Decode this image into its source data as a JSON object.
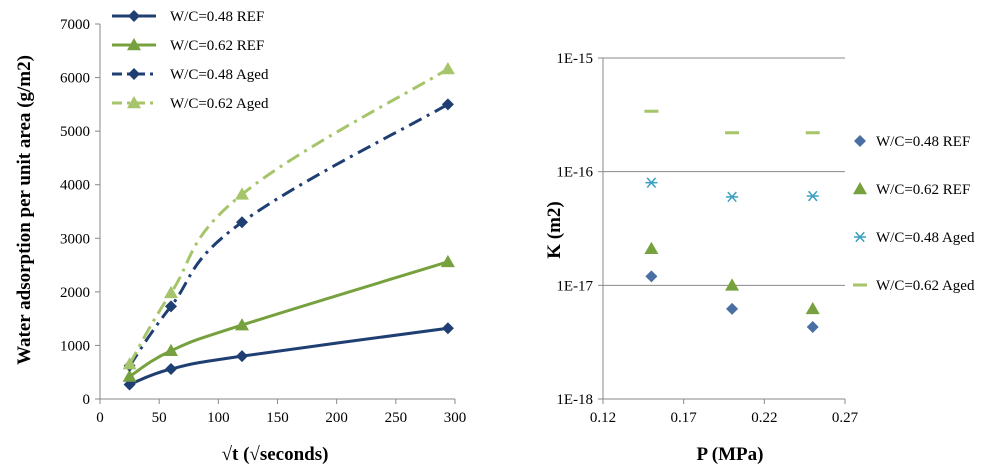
{
  "chart_data": [
    {
      "type": "line",
      "title": "",
      "xlabel": "√t (√seconds)",
      "ylabel": "Water adsorption per unit area (g/m2)",
      "xlim": [
        0,
        300
      ],
      "ylim": [
        0,
        7000
      ],
      "xticks": [
        "0",
        "50",
        "100",
        "150",
        "200",
        "250",
        "300"
      ],
      "yticks": [
        "0",
        "1000",
        "2000",
        "3000",
        "4000",
        "5000",
        "6000",
        "7000"
      ],
      "grid": false,
      "legend": "top-left",
      "series": [
        {
          "name": "W/C=0.48 REF",
          "color": "#1f3f73",
          "marker": "diamond",
          "line": "solid",
          "x": [
            25,
            60,
            120,
            294
          ],
          "y": [
            270,
            560,
            800,
            1320
          ]
        },
        {
          "name": "W/C=0.62 REF",
          "color": "#77a13f",
          "marker": "triangle",
          "line": "solid",
          "x": [
            25,
            60,
            120,
            294
          ],
          "y": [
            420,
            900,
            1380,
            2560
          ]
        },
        {
          "name": "W/C=0.48 Aged",
          "color": "#1f3f73",
          "marker": "diamond",
          "line": "dashdot",
          "x": [
            25,
            60,
            120,
            294
          ],
          "y": [
            620,
            1730,
            3300,
            5500
          ]
        },
        {
          "name": "W/C=0.62 Aged",
          "color": "#a6c56a",
          "marker": "triangle",
          "line": "dashdot",
          "x": [
            25,
            60,
            120,
            294
          ],
          "y": [
            650,
            1980,
            3820,
            6160
          ]
        }
      ]
    },
    {
      "type": "scatter",
      "title": "",
      "xlabel": "P (MPa)",
      "ylabel": "K (m2)",
      "xlim": [
        0.12,
        0.27
      ],
      "ylim": [
        1e-18,
        1e-15
      ],
      "yscale": "log",
      "xticks": [
        "0.12",
        "0.17",
        "0.22",
        "0.27"
      ],
      "yticks": [
        "1E-18",
        "1E-17",
        "1E-16",
        "1E-15"
      ],
      "grid": true,
      "legend": "right",
      "series": [
        {
          "name": "W/C=0.48 REF",
          "color": "#4a6fa5",
          "marker": "diamond",
          "x": [
            0.15,
            0.2,
            0.25
          ],
          "y": [
            1.2e-17,
            6.2e-18,
            4.3e-18
          ]
        },
        {
          "name": "W/C=0.62 REF",
          "color": "#77a13f",
          "marker": "triangle",
          "x": [
            0.15,
            0.2,
            0.25
          ],
          "y": [
            2.1e-17,
            1e-17,
            6.2e-18
          ]
        },
        {
          "name": "W/C=0.48 Aged",
          "color": "#3a9fc0",
          "marker": "star",
          "x": [
            0.15,
            0.2,
            0.25
          ],
          "y": [
            8e-17,
            6e-17,
            6.1e-17
          ]
        },
        {
          "name": "W/C=0.62 Aged",
          "color": "#a6c56a",
          "marker": "dash",
          "x": [
            0.15,
            0.2,
            0.25
          ],
          "y": [
            3.4e-16,
            2.2e-16,
            2.2e-16
          ]
        }
      ]
    }
  ]
}
